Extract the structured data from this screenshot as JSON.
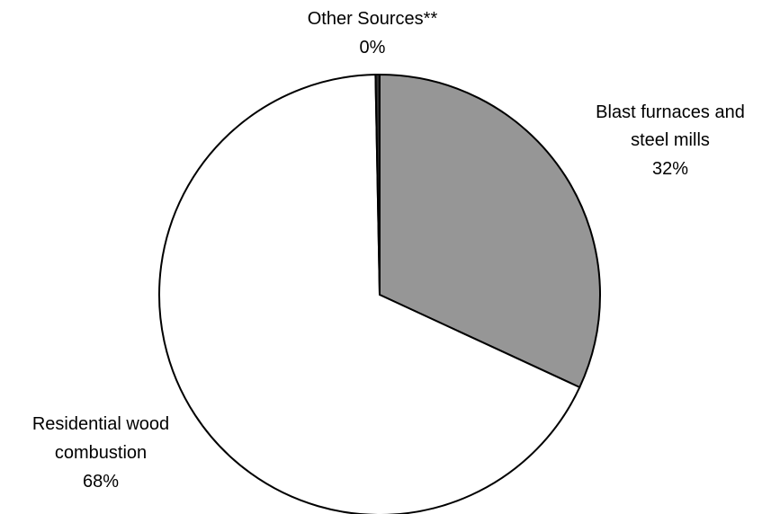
{
  "chart_data": {
    "type": "pie",
    "slices": [
      {
        "label": "Blast furnaces and steel mills",
        "label_lines": [
          "Blast furnaces and",
          "steel mills"
        ],
        "value": 32,
        "value_label": "32%",
        "color": "#969696"
      },
      {
        "label": "Residential wood combustion",
        "label_lines": [
          "Residential wood",
          "combustion"
        ],
        "value": 68,
        "value_label": "68%",
        "color": "#ffffff"
      },
      {
        "label": "Other Sources**",
        "label_lines": [
          "Other Sources**"
        ],
        "value": 0.3,
        "value_label": "0%",
        "color": "#333333"
      }
    ],
    "start_angle_deg": 0,
    "direction": "clockwise",
    "legend": "none"
  }
}
